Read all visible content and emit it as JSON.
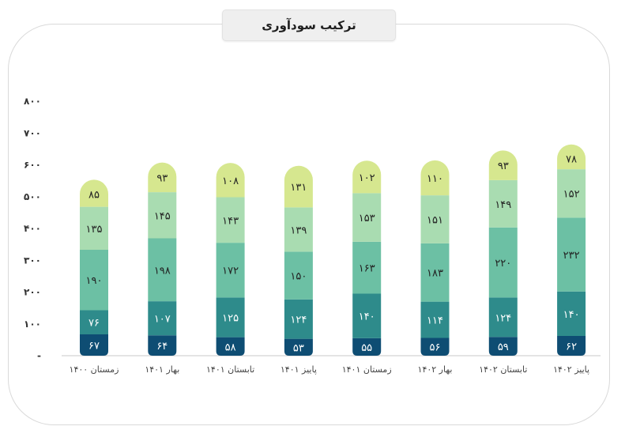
{
  "chart_data": {
    "type": "bar",
    "stacked": true,
    "title": "ترکیب سودآوری",
    "categories": [
      "زمستان ۱۴۰۰",
      "بهار ۱۴۰۱",
      "تابستان ۱۴۰۱",
      "پاییز ۱۴۰۱",
      "زمستان ۱۴۰۱",
      "بهار ۱۴۰۲",
      "تابستان ۱۴۰۲",
      "پاییز ۱۴۰۲"
    ],
    "series": [
      {
        "values": [
          67,
          64,
          58,
          53,
          55,
          56,
          59,
          62
        ],
        "labels": [
          "۶۷",
          "۶۴",
          "۵۸",
          "۵۳",
          "۵۵",
          "۵۶",
          "۵۹",
          "۶۲"
        ],
        "color": "#0e4d73"
      },
      {
        "values": [
          76,
          107,
          125,
          124,
          140,
          114,
          124,
          140
        ],
        "labels": [
          "۷۶",
          "۱۰۷",
          "۱۲۵",
          "۱۲۴",
          "۱۴۰",
          "۱۱۴",
          "۱۲۴",
          "۱۴۰"
        ],
        "color": "#2e8b8b"
      },
      {
        "values": [
          190,
          198,
          172,
          150,
          163,
          183,
          220,
          232
        ],
        "labels": [
          "۱۹۰",
          "۱۹۸",
          "۱۷۲",
          "۱۵۰",
          "۱۶۳",
          "۱۸۳",
          "۲۲۰",
          "۲۳۲"
        ],
        "color": "#6cc0a4"
      },
      {
        "values": [
          135,
          145,
          143,
          139,
          153,
          151,
          149,
          152
        ],
        "labels": [
          "۱۳۵",
          "۱۴۵",
          "۱۴۳",
          "۱۳۹",
          "۱۵۳",
          "۱۵۱",
          "۱۴۹",
          "۱۵۲"
        ],
        "color": "#a9dcb1"
      },
      {
        "values": [
          85,
          93,
          108,
          131,
          102,
          110,
          93,
          78
        ],
        "labels": [
          "۸۵",
          "۹۳",
          "۱۰۸",
          "۱۳۱",
          "۱۰۲",
          "۱۱۰",
          "۹۳",
          "۷۸"
        ],
        "color": "#d6e78f"
      }
    ],
    "yticks": [
      0,
      100,
      200,
      300,
      400,
      500,
      600,
      700,
      800
    ],
    "ytick_labels": [
      "-",
      "۱۰۰",
      "۲۰۰",
      "۳۰۰",
      "۴۰۰",
      "۵۰۰",
      "۶۰۰",
      "۷۰۰",
      "۸۰۰"
    ],
    "ylim": [
      0,
      800
    ],
    "grid": false,
    "legend": false
  }
}
